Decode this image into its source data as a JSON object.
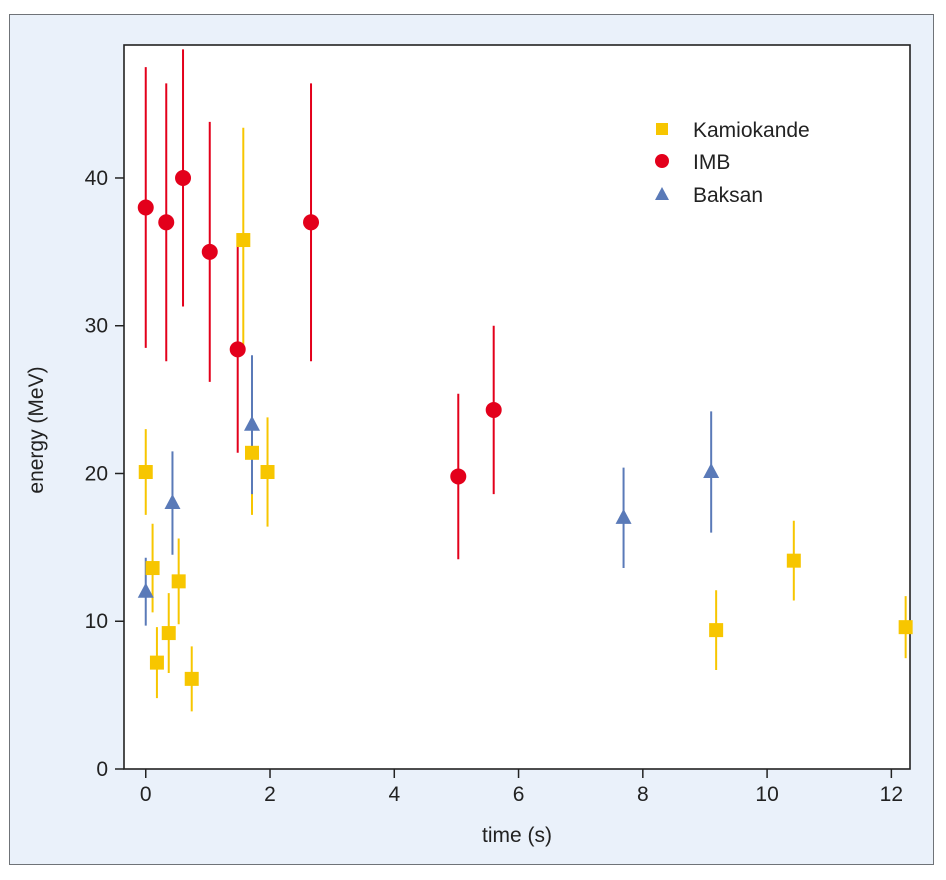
{
  "chart_data": {
    "type": "scatter",
    "title": "",
    "xlabel": "time (s)",
    "ylabel": "energy (MeV)",
    "xlim": [
      -0.35,
      12.3
    ],
    "ylim": [
      0,
      49
    ],
    "xticks": [
      0,
      2,
      4,
      6,
      8,
      10,
      12
    ],
    "yticks": [
      0,
      10,
      20,
      30,
      40
    ],
    "xtick_labels": [
      "0",
      "2",
      "4",
      "6",
      "8",
      "10",
      "12"
    ],
    "ytick_labels": [
      "0",
      "10",
      "20",
      "30",
      "40"
    ],
    "grid": false,
    "legend_position": "top-right",
    "series": [
      {
        "name": "Kamiokande",
        "marker": "square",
        "color": "#f7c600",
        "points": [
          {
            "x": 0.0,
            "y": 20.1,
            "err": 2.9
          },
          {
            "x": 0.11,
            "y": 13.6,
            "err": 3.0
          },
          {
            "x": 0.18,
            "y": 7.2,
            "err": 2.4
          },
          {
            "x": 0.37,
            "y": 9.2,
            "err": 2.7
          },
          {
            "x": 0.53,
            "y": 12.7,
            "err": 2.9
          },
          {
            "x": 0.74,
            "y": 6.1,
            "err": 2.2
          },
          {
            "x": 1.57,
            "y": 35.8,
            "err": 7.6
          },
          {
            "x": 1.71,
            "y": 21.4,
            "err": 4.2
          },
          {
            "x": 1.96,
            "y": 20.1,
            "err": 3.7
          },
          {
            "x": 9.18,
            "y": 9.4,
            "err": 2.7
          },
          {
            "x": 10.43,
            "y": 14.1,
            "err": 2.7
          },
          {
            "x": 12.23,
            "y": 9.6,
            "err": 2.1
          }
        ]
      },
      {
        "name": "IMB",
        "marker": "circle",
        "color": "#e3001b",
        "points": [
          {
            "x": 0.0,
            "y": 38.0,
            "err": 9.5
          },
          {
            "x": 0.33,
            "y": 37.0,
            "err": 9.4
          },
          {
            "x": 0.6,
            "y": 40.0,
            "err": 8.7
          },
          {
            "x": 1.03,
            "y": 35.0,
            "err": 8.8
          },
          {
            "x": 1.48,
            "y": 28.4,
            "err": 7.0
          },
          {
            "x": 2.66,
            "y": 37.0,
            "err": 9.4
          },
          {
            "x": 5.03,
            "y": 19.8,
            "err": 5.6
          },
          {
            "x": 5.6,
            "y": 24.3,
            "err": 5.7
          }
        ]
      },
      {
        "name": "Baksan",
        "marker": "triangle",
        "color": "#5a7ab8",
        "points": [
          {
            "x": 0.0,
            "y": 12.0,
            "err": 2.3
          },
          {
            "x": 0.43,
            "y": 18.0,
            "err": 3.5
          },
          {
            "x": 1.71,
            "y": 23.3,
            "err": 4.7
          },
          {
            "x": 7.69,
            "y": 17.0,
            "err": 3.4
          },
          {
            "x": 9.1,
            "y": 20.1,
            "err": 4.1
          }
        ]
      }
    ]
  }
}
